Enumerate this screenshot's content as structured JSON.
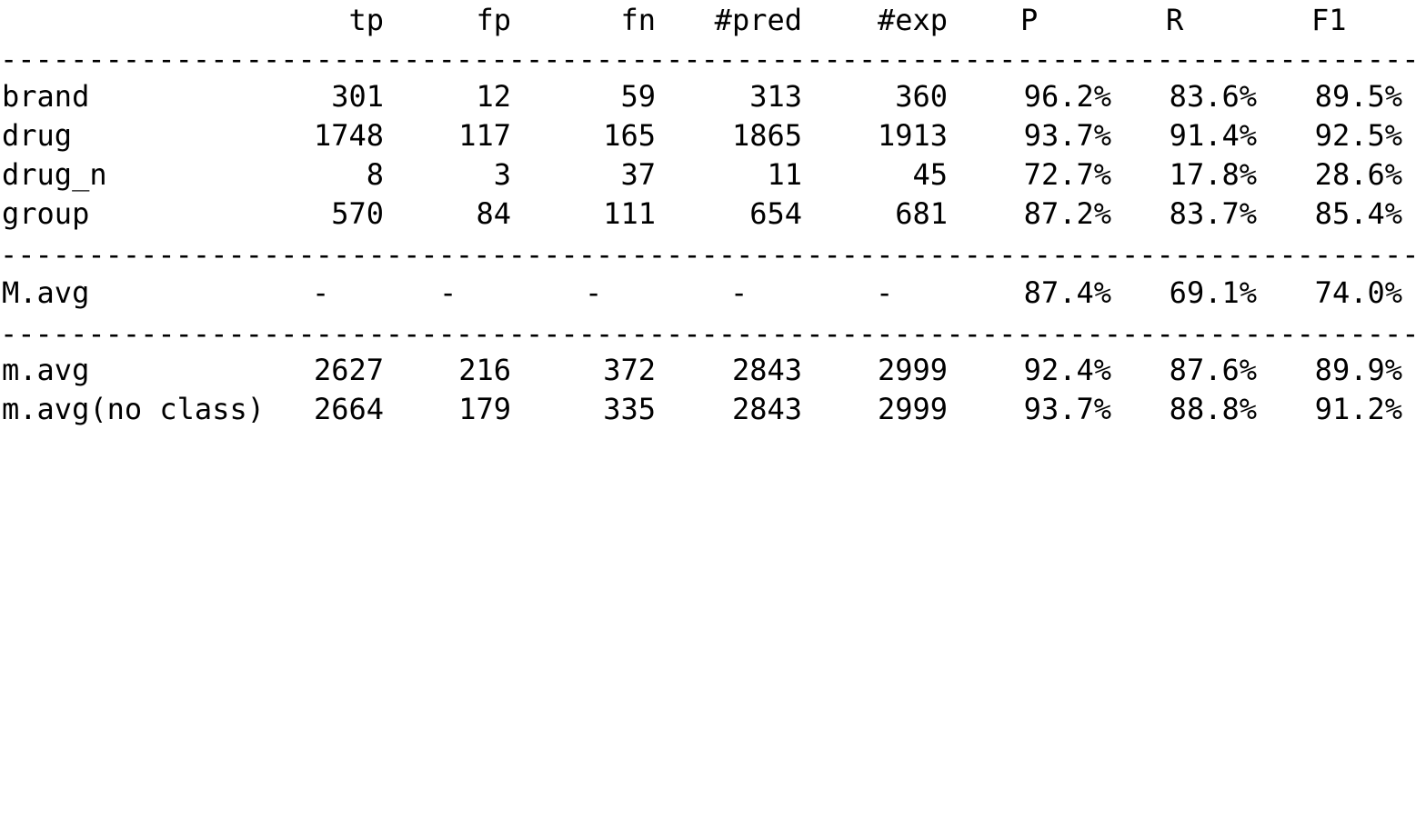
{
  "columns": {
    "tp": "tp",
    "fp": "fp",
    "fn": "fn",
    "pred": "#pred",
    "exp": "#exp",
    "P": "P",
    "R": "R",
    "F1": "F1"
  },
  "separator": "------------------------------------------------------------------------------------------------------------------------------------------------------------",
  "rows": [
    {
      "label": "brand",
      "tp": "301",
      "fp": "12",
      "fn": "59",
      "pred": "313",
      "exp": "360",
      "P": "96.2%",
      "R": "83.6%",
      "F1": "89.5%"
    },
    {
      "label": "drug",
      "tp": "1748",
      "fp": "117",
      "fn": "165",
      "pred": "1865",
      "exp": "1913",
      "P": "93.7%",
      "R": "91.4%",
      "F1": "92.5%"
    },
    {
      "label": "drug_n",
      "tp": "8",
      "fp": "3",
      "fn": "37",
      "pred": "11",
      "exp": "45",
      "P": "72.7%",
      "R": "17.8%",
      "F1": "28.6%"
    },
    {
      "label": "group",
      "tp": "570",
      "fp": "84",
      "fn": "111",
      "pred": "654",
      "exp": "681",
      "P": "87.2%",
      "R": "83.7%",
      "F1": "85.4%"
    }
  ],
  "macro": {
    "label": "M.avg",
    "tp": "-",
    "fp": "-",
    "fn": "-",
    "pred": "-",
    "exp": "-",
    "P": "87.4%",
    "R": "69.1%",
    "F1": "74.0%"
  },
  "micro": [
    {
      "label": "m.avg",
      "tp": "2627",
      "fp": "216",
      "fn": "372",
      "pred": "2843",
      "exp": "2999",
      "P": "92.4%",
      "R": "87.6%",
      "F1": "89.9%"
    },
    {
      "label": "m.avg(no class)",
      "tp": "2664",
      "fp": "179",
      "fn": "335",
      "pred": "2843",
      "exp": "2999",
      "P": "93.7%",
      "R": "88.8%",
      "F1": "91.2%"
    }
  ]
}
